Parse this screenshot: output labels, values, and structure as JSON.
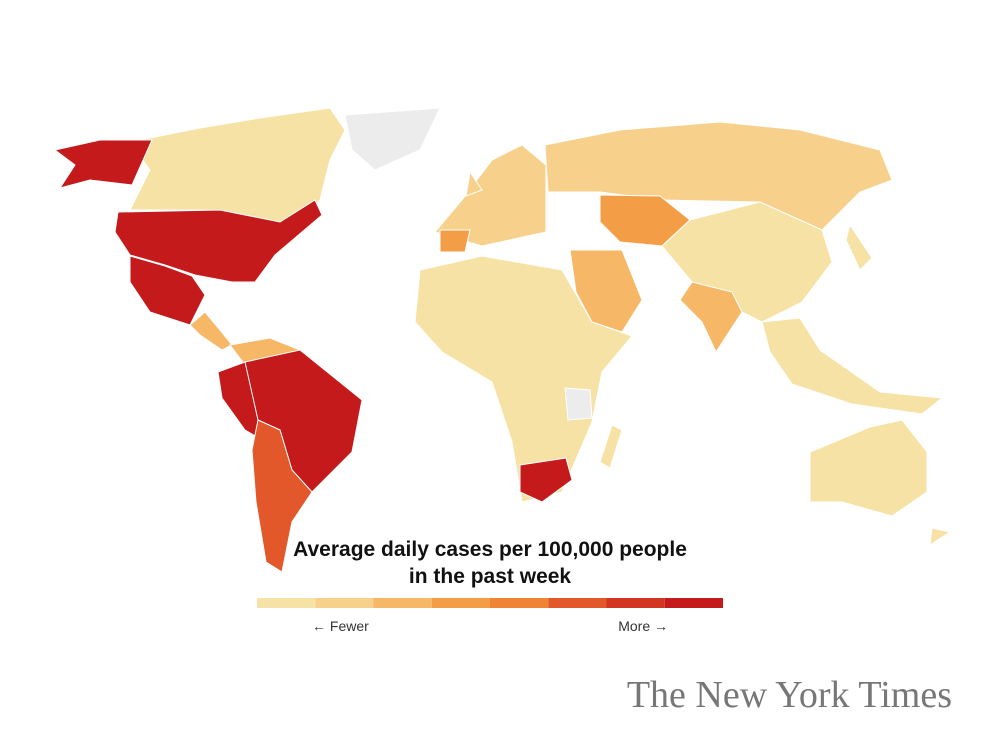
{
  "legend": {
    "title_lines": [
      "Average daily cases per 100,000 people",
      "in the past week"
    ],
    "colors": [
      "#f6e2a4",
      "#f7d08b",
      "#f6b766",
      "#f39e47",
      "#ef8434",
      "#e2582a",
      "#d23622",
      "#c51a1b"
    ],
    "low_label": "← Fewer",
    "high_label": "More →"
  },
  "credit": "The New York Times"
}
